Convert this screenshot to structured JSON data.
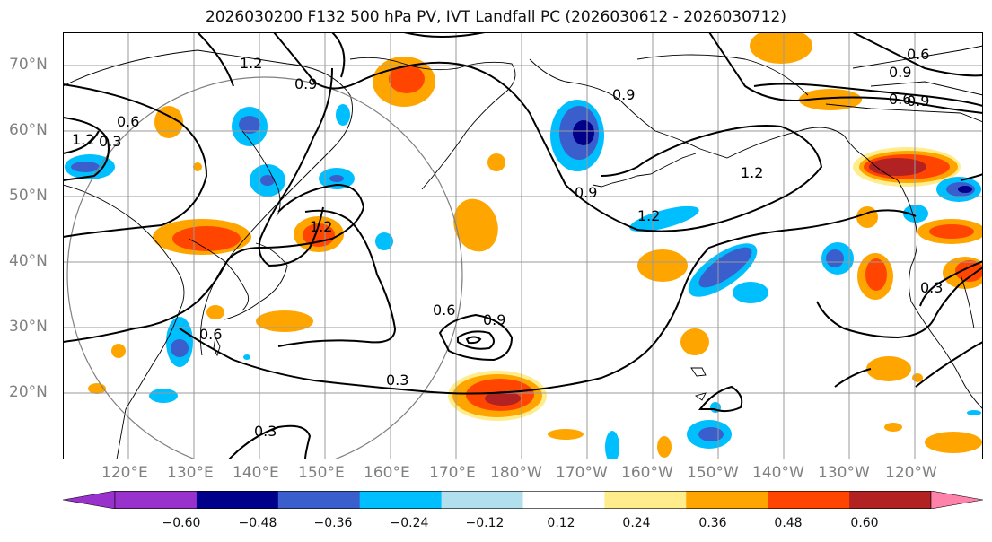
{
  "title": "2026030200 F132 500 hPa PV, IVT Landfall PC (2026030612 - 2026030712)",
  "lat_labels": [
    "70°N",
    "60°N",
    "50°N",
    "40°N",
    "30°N",
    "20°N"
  ],
  "lon_labels": [
    "120°E",
    "130°E",
    "140°E",
    "150°E",
    "160°E",
    "170°E",
    "180°W",
    "170°W",
    "160°W",
    "150°W",
    "140°W",
    "130°W",
    "120°W"
  ],
  "contour_labels": [
    "1.2",
    "0.9",
    "0.6",
    "0.3",
    "1.2",
    "0.9",
    "0.6",
    "0.9",
    "1.2",
    "0.9",
    "1.2",
    "0.3",
    "0.6",
    "0.9",
    "0.3",
    "0.6",
    "1.2",
    "0.9",
    "0.6",
    "0.3"
  ],
  "colorbar": {
    "ticks": [
      "−0.60",
      "−0.48",
      "−0.36",
      "−0.24",
      "−0.12",
      "0.12",
      "0.24",
      "0.36",
      "0.48",
      "0.60"
    ],
    "colors": [
      "#9932cc",
      "#00008b",
      "#3a5fcd",
      "#00bfff",
      "#b2dfee",
      "#ffffff",
      "#ffec8b",
      "#ffa500",
      "#ff4500",
      "#b22222",
      "#ff82ab"
    ]
  }
}
